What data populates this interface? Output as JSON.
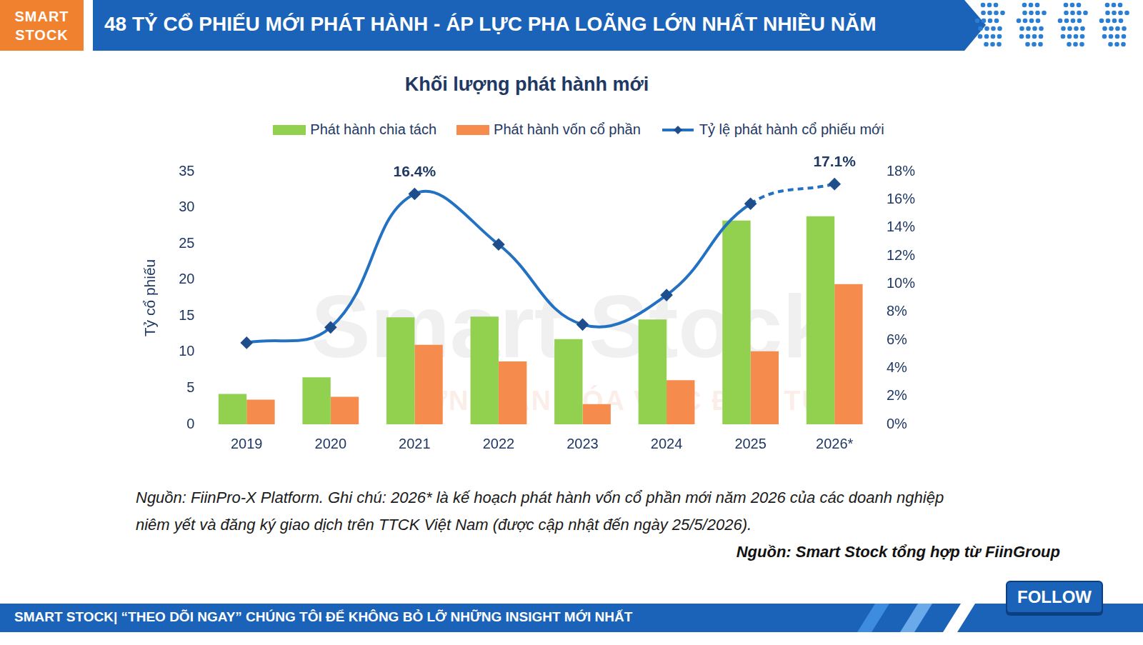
{
  "header": {
    "logo": [
      "SMART",
      "STOCK"
    ],
    "title": "48 TỶ CỔ PHIẾU MỚI PHÁT HÀNH - ÁP LỰC PHA LOÃNG LỚN NHẤT NHIỀU NĂM"
  },
  "chart_data": {
    "type": "bar",
    "title": "Khối lượng phát hành mới",
    "y_label": "Tỷ cổ phiếu",
    "categories": [
      "2019",
      "2020",
      "2021",
      "2022",
      "2023",
      "2024",
      "2025",
      "2026*"
    ],
    "series": [
      {
        "name": "Phát hành chia tách",
        "type": "bar",
        "color": "#92d050",
        "values": [
          4.2,
          6.5,
          14.8,
          14.9,
          11.8,
          14.5,
          28.2,
          28.8
        ]
      },
      {
        "name": "Phát hành vốn cổ phần",
        "type": "bar",
        "color": "#f58b4c",
        "values": [
          3.4,
          3.8,
          11.0,
          8.7,
          2.8,
          6.1,
          10.1,
          19.4
        ]
      },
      {
        "name": "Tỷ lệ phát hành cổ phiếu mới",
        "type": "line",
        "axis": "y2",
        "color": "#2271c3",
        "marker": "diamond",
        "line_style": "solid",
        "values": [
          5.8,
          6.9,
          16.4,
          12.8,
          7.1,
          9.2,
          15.7,
          17.1
        ]
      }
    ],
    "ylim": [
      0,
      35
    ],
    "yticks": [
      0,
      5,
      10,
      15,
      20,
      25,
      30,
      35
    ],
    "y2lim": [
      0,
      18
    ],
    "y2ticks": [
      {
        "value": 0,
        "label": "0%"
      },
      {
        "value": 2,
        "label": "2%"
      },
      {
        "value": 4,
        "label": "4%"
      },
      {
        "value": 6,
        "label": "6%"
      },
      {
        "value": 8,
        "label": "8%"
      },
      {
        "value": 10,
        "label": "10%"
      },
      {
        "value": 12,
        "label": "12%"
      },
      {
        "value": 14,
        "label": "14%"
      },
      {
        "value": 16,
        "label": "16%"
      },
      {
        "value": 18,
        "label": "18%"
      }
    ],
    "grid": false,
    "legend": "top",
    "annotations": [
      {
        "category": "2021",
        "text": "16.4%"
      },
      {
        "category": "2026*",
        "text": "17.1%"
      }
    ]
  },
  "watermark": [
    "Smart Stock",
    "ĐƠN GIẢN HÓA VIỆC ĐẦU TƯ"
  ],
  "note_lines": [
    "Nguồn: FiinPro-X Platform. Ghi chú: 2026* là kế hoạch phát hành vốn cổ phần mới năm 2026 của các doanh nghiệp",
    "niêm yết và đăng ký giao dịch trên TTCK Việt Nam (được cập nhật đến ngày 25/5/2026)."
  ],
  "source": "Nguồn: Smart Stock tổng hợp từ FiinGroup",
  "footer": {
    "text": "SMART STOCK| “THEO DÕI NGAY” CHÚNG TÔI ĐỂ KHÔNG BỎ LỠ NHỮNG INSIGHT MỚI NHẤT",
    "button": "FOLLOW"
  }
}
